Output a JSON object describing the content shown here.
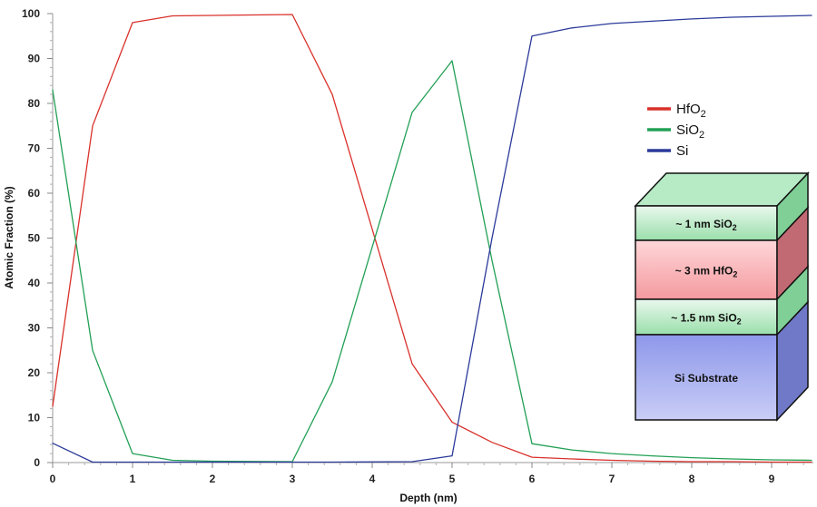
{
  "chart_data": {
    "type": "line",
    "title": "",
    "xlabel": "Depth (nm)",
    "ylabel": "Atomic Fraction (%)",
    "xlim": [
      0,
      9.5
    ],
    "ylim": [
      0,
      100
    ],
    "x_ticks": [
      "0",
      "1",
      "2",
      "3",
      "4",
      "5",
      "6",
      "7",
      "8",
      "9"
    ],
    "y_ticks": [
      "0",
      "10",
      "20",
      "30",
      "40",
      "50",
      "60",
      "70",
      "80",
      "90",
      "100"
    ],
    "grid": false,
    "legend_position": "right",
    "series": [
      {
        "name": "HfO",
        "subscript": "2",
        "color": "#d9312b",
        "x": [
          0,
          0.5,
          1,
          1.5,
          2,
          3,
          3.5,
          4.5,
          5,
          5.5,
          6,
          6.5,
          7,
          7.5,
          8,
          8.5,
          9,
          9.5
        ],
        "y": [
          12.5,
          75,
          98,
          99.5,
          99.6,
          99.8,
          82,
          22,
          9,
          4.5,
          1.2,
          0.8,
          0.5,
          0.3,
          0.2,
          0.2,
          0.1,
          0.1
        ]
      },
      {
        "name": "SiO",
        "subscript": "2",
        "color": "#22a055",
        "x": [
          0,
          0.5,
          1,
          1.5,
          2,
          3,
          3.5,
          4.5,
          5,
          5.5,
          6,
          6.5,
          7,
          7.5,
          8,
          8.5,
          9,
          9.5
        ],
        "y": [
          83,
          25,
          2,
          0.5,
          0.3,
          0.2,
          18,
          78,
          89.5,
          45,
          4.2,
          2.8,
          2.0,
          1.5,
          1.1,
          0.8,
          0.6,
          0.5
        ]
      },
      {
        "name": "Si",
        "subscript": "",
        "color": "#2b3a9a",
        "x": [
          0,
          0.5,
          1,
          1.5,
          2,
          3,
          3.5,
          4.5,
          5,
          5.5,
          6,
          6.5,
          7,
          7.5,
          8,
          8.5,
          9,
          9.5
        ],
        "y": [
          4.3,
          0.1,
          0.1,
          0.1,
          0.1,
          0.1,
          0.1,
          0.2,
          1.5,
          50,
          95,
          96.8,
          97.8,
          98.3,
          98.8,
          99.2,
          99.4,
          99.6
        ]
      }
    ],
    "inset": {
      "layers": [
        {
          "label": "~ 1 nm SiO",
          "subscript": "2",
          "color": "#a9e6b8"
        },
        {
          "label": "~ 3 nm HfO",
          "subscript": "2",
          "color": "#f5a0a4"
        },
        {
          "label": "~ 1.5 nm SiO",
          "subscript": "2",
          "color": "#a9e6b8"
        },
        {
          "label": "Si Substrate",
          "subscript": "",
          "color": "#aab3ee"
        }
      ]
    }
  }
}
